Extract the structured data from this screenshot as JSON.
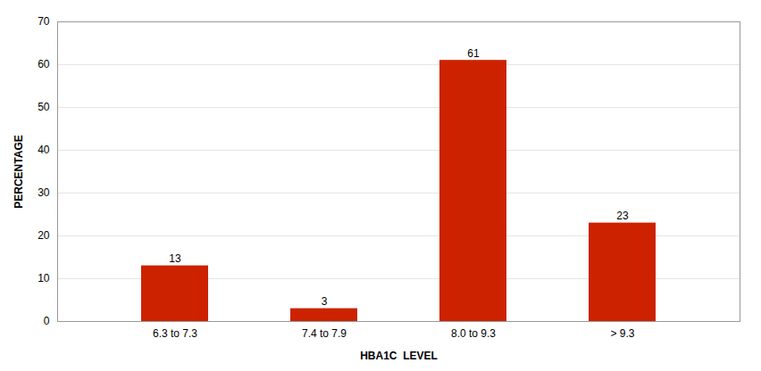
{
  "chart_data": {
    "type": "bar",
    "categories": [
      "6.3 to 7.3",
      "7.4 to 7.9",
      "8.0 to 9.3",
      "> 9.3"
    ],
    "values": [
      13,
      3,
      61,
      23
    ],
    "color": "#cc2200",
    "xlabel": "HBA1C  LEVEL",
    "ylabel": "PERCENTAGE",
    "ylim": [
      0,
      70
    ],
    "yticks": [
      0,
      10,
      20,
      30,
      40,
      50,
      60,
      70
    ],
    "grid": true,
    "data_labels": true
  }
}
